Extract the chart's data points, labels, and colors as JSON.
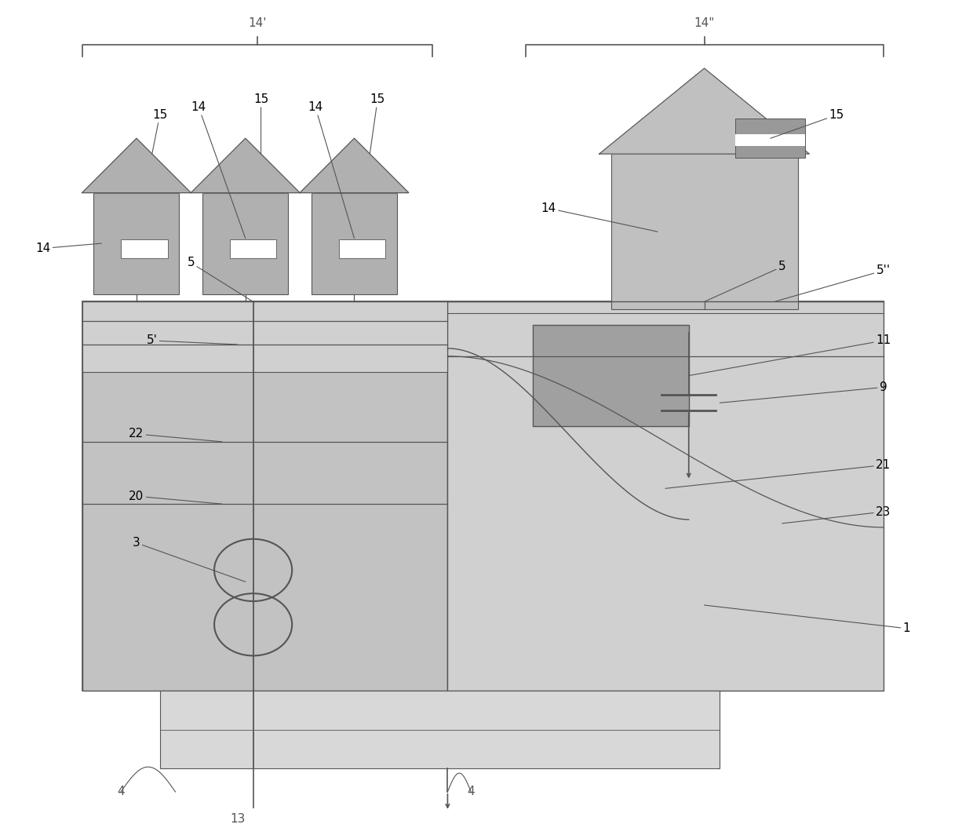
{
  "bg_color": "#ffffff",
  "fig_w": 12.4,
  "fig_h": 10.55,
  "lc": "#555555",
  "house_color": "#b0b0b0",
  "house_color2": "#c0c0c0",
  "main_fill": "#c8c8c8",
  "right_fill": "#d0d0d0",
  "left_fill": "#c2c2c2",
  "es_fill": "#909090",
  "strip_fill": "#d8d8d8",
  "inner_fill": "#bbbbbb",
  "label_fs": 11
}
